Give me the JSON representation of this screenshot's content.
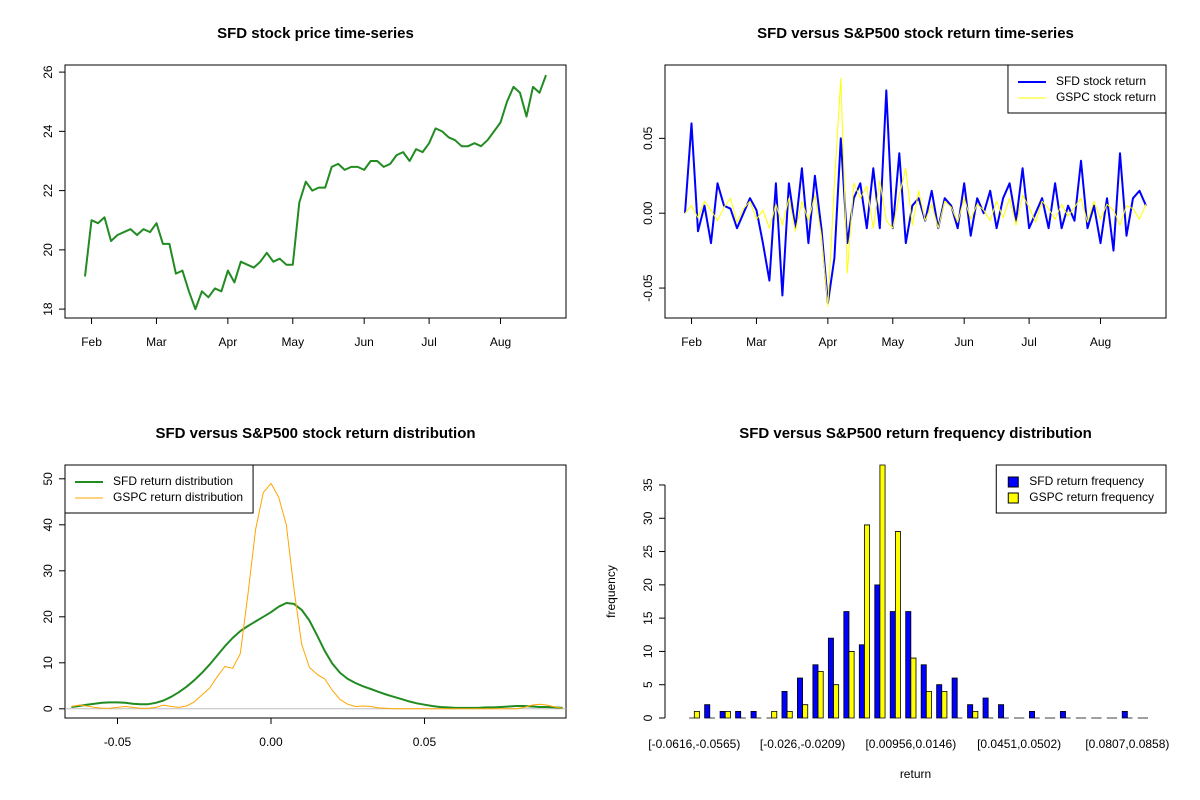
{
  "chart_data": [
    {
      "type": "line",
      "title": "SFD stock price time-series",
      "categories": [
        null,
        "Feb",
        null,
        null,
        null,
        null,
        null,
        null,
        null,
        null,
        null,
        "Mar",
        null,
        null,
        null,
        null,
        null,
        null,
        null,
        null,
        null,
        null,
        "Apr",
        null,
        null,
        null,
        null,
        null,
        null,
        null,
        null,
        null,
        "May",
        null,
        null,
        null,
        null,
        null,
        null,
        null,
        null,
        null,
        null,
        "Jun",
        null,
        null,
        null,
        null,
        null,
        null,
        null,
        null,
        null,
        "Jul",
        null,
        null,
        null,
        null,
        null,
        null,
        null,
        null,
        null,
        null,
        "Aug",
        null,
        null,
        null,
        null,
        null,
        null,
        null
      ],
      "series": [
        {
          "color": "#228b22",
          "values": [
            19.1,
            21.0,
            20.9,
            21.1,
            20.3,
            20.5,
            20.6,
            20.7,
            20.5,
            20.7,
            20.6,
            20.9,
            20.2,
            20.2,
            19.2,
            19.3,
            18.6,
            18.0,
            18.6,
            18.4,
            18.7,
            18.6,
            19.3,
            18.9,
            19.6,
            19.5,
            19.4,
            19.6,
            19.9,
            19.6,
            19.7,
            19.5,
            19.5,
            21.6,
            22.3,
            22.0,
            22.1,
            22.1,
            22.8,
            22.9,
            22.7,
            22.8,
            22.8,
            22.7,
            23.0,
            23.0,
            22.8,
            22.9,
            23.2,
            23.3,
            23.0,
            23.4,
            23.3,
            23.6,
            24.1,
            24.0,
            23.8,
            23.7,
            23.5,
            23.5,
            23.6,
            23.5,
            23.7,
            24.0,
            24.3,
            25.0,
            25.5,
            25.3,
            24.5,
            25.5,
            25.3,
            25.9
          ]
        }
      ],
      "ylim": [
        17.7,
        26.24
      ],
      "yticks": [
        18,
        20,
        22,
        24,
        26
      ]
    },
    {
      "type": "line",
      "title": "SFD versus S&P500 stock return time-series",
      "categories": [
        null,
        "Feb",
        null,
        null,
        null,
        null,
        null,
        null,
        null,
        null,
        null,
        "Mar",
        null,
        null,
        null,
        null,
        null,
        null,
        null,
        null,
        null,
        null,
        "Apr",
        null,
        null,
        null,
        null,
        null,
        null,
        null,
        null,
        null,
        "May",
        null,
        null,
        null,
        null,
        null,
        null,
        null,
        null,
        null,
        null,
        "Jun",
        null,
        null,
        null,
        null,
        null,
        null,
        null,
        null,
        null,
        "Jul",
        null,
        null,
        null,
        null,
        null,
        null,
        null,
        null,
        null,
        null,
        "Aug",
        null,
        null,
        null,
        null,
        null,
        null,
        null
      ],
      "series": [
        {
          "name": "SFD stock return",
          "color": "#0000ff",
          "values": [
            0.0,
            0.06,
            -0.012,
            0.005,
            -0.02,
            0.02,
            0.005,
            0.003,
            -0.01,
            0.0,
            0.01,
            0.002,
            -0.02,
            -0.045,
            0.02,
            -0.055,
            0.02,
            -0.01,
            0.03,
            -0.02,
            0.025,
            -0.01,
            -0.06,
            -0.03,
            0.05,
            -0.02,
            0.01,
            0.02,
            -0.01,
            0.03,
            -0.01,
            0.082,
            -0.01,
            0.04,
            -0.02,
            0.005,
            0.01,
            -0.005,
            0.015,
            -0.01,
            0.01,
            0.005,
            -0.01,
            0.02,
            -0.015,
            0.01,
            0.0,
            0.015,
            -0.01,
            0.01,
            0.02,
            -0.005,
            0.03,
            -0.01,
            0.0,
            0.01,
            -0.01,
            0.02,
            -0.01,
            0.005,
            -0.005,
            0.035,
            -0.01,
            0.005,
            -0.02,
            0.01,
            -0.025,
            0.04,
            -0.015,
            0.01,
            0.015,
            0.005
          ]
        },
        {
          "name": "GSPC stock return",
          "color": "#ffff00",
          "values": [
            0.0,
            0.005,
            -0.003,
            0.008,
            0.002,
            -0.005,
            0.004,
            0.01,
            -0.006,
            0.003,
            0.008,
            -0.004,
            0.002,
            -0.01,
            0.006,
            -0.008,
            0.01,
            -0.012,
            0.008,
            -0.005,
            0.012,
            -0.015,
            -0.062,
            0.02,
            0.09,
            -0.04,
            0.02,
            0.01,
            0.018,
            -0.01,
            0.022,
            -0.005,
            -0.01,
            0.012,
            0.03,
            -0.008,
            0.015,
            -0.005,
            0.006,
            -0.01,
            0.008,
            0.004,
            -0.006,
            0.01,
            -0.004,
            0.006,
            0.002,
            -0.005,
            0.008,
            -0.003,
            0.01,
            -0.008,
            0.012,
            0.004,
            -0.006,
            0.008,
            0.003,
            -0.004,
            0.006,
            -0.002,
            0.004,
            0.01,
            -0.006,
            0.008,
            -0.004,
            0.006,
            0.002,
            -0.008,
            0.005,
            0.003,
            -0.004,
            0.006
          ]
        }
      ],
      "ylim": [
        -0.07,
        0.099
      ],
      "yticks": [
        -0.05,
        {
          "value": 0,
          "label": "0.00"
        },
        0.05
      ],
      "legend": "topright"
    },
    {
      "type": "density",
      "title": "SFD versus S&P500 stock return distribution",
      "x": [
        -0.065,
        -0.0625,
        -0.06,
        -0.0575,
        -0.055,
        -0.0525,
        -0.05,
        -0.0475,
        -0.045,
        -0.0425,
        -0.04,
        -0.0375,
        -0.035,
        -0.0325,
        -0.03,
        -0.0275,
        -0.025,
        -0.0225,
        -0.02,
        -0.0175,
        -0.015,
        -0.0125,
        -0.01,
        -0.0075,
        -0.005,
        -0.0025,
        0,
        0.0025,
        0.005,
        0.0075,
        0.01,
        0.0125,
        0.015,
        0.0175,
        0.02,
        0.0225,
        0.025,
        0.0275,
        0.03,
        0.0325,
        0.035,
        0.0375,
        0.04,
        0.0425,
        0.045,
        0.0475,
        0.05,
        0.0525,
        0.055,
        0.0575,
        0.06,
        0.0625,
        0.065,
        0.0675,
        0.07,
        0.0725,
        0.075,
        0.0775,
        0.08,
        0.0825,
        0.085,
        0.0875,
        0.09,
        0.0925,
        0.095
      ],
      "series": [
        {
          "name": "SFD return distribution",
          "color": "#228b22",
          "values": [
            0.4,
            0.6,
            0.9,
            1.1,
            1.3,
            1.4,
            1.4,
            1.3,
            1.1,
            1.0,
            1.0,
            1.3,
            1.8,
            2.6,
            3.6,
            4.8,
            6.2,
            7.8,
            9.6,
            11.6,
            13.6,
            15.4,
            16.9,
            18.0,
            19.0,
            20.0,
            21.0,
            22.2,
            23.0,
            22.8,
            21.5,
            19.2,
            16.0,
            12.6,
            9.8,
            7.8,
            6.5,
            5.6,
            4.9,
            4.3,
            3.7,
            3.1,
            2.6,
            2.1,
            1.6,
            1.2,
            0.9,
            0.6,
            0.4,
            0.3,
            0.2,
            0.2,
            0.2,
            0.2,
            0.3,
            0.3,
            0.4,
            0.5,
            0.6,
            0.6,
            0.5,
            0.4,
            0.4,
            0.3,
            0.2
          ]
        },
        {
          "name": "GSPC return distribution",
          "color": "#ffa500",
          "values": [
            0.5,
            0.8,
            0.6,
            0.3,
            0.1,
            0.1,
            0.3,
            0.5,
            0.3,
            0.1,
            0.1,
            0.3,
            0.8,
            0.5,
            0.3,
            0.6,
            1.5,
            3.0,
            4.5,
            7.0,
            9.2,
            8.8,
            12.0,
            25.0,
            39.0,
            47.0,
            49.0,
            46.0,
            40.0,
            26.0,
            14.0,
            9.0,
            7.5,
            6.5,
            4.0,
            2.0,
            1.0,
            0.5,
            0.6,
            0.5,
            0.2,
            0.1,
            0,
            0,
            0,
            0,
            0,
            0,
            0,
            0,
            0,
            0,
            0,
            0,
            0,
            0,
            0,
            0,
            0,
            0.3,
            0.8,
            1.0,
            0.8,
            0.4,
            0.1
          ]
        }
      ],
      "xlim": [
        -0.0671,
        0.0961
      ],
      "xticks": [
        -0.05,
        {
          "value": 0,
          "label": "0.00"
        },
        0.05
      ],
      "ylim": [
        -2,
        53
      ],
      "yticks": [
        0,
        10,
        20,
        30,
        40,
        50
      ],
      "legend": "topleft"
    },
    {
      "type": "bar",
      "title": "SFD versus S&P500 return frequency distribution",
      "xlabel": "return",
      "ylabel": "frequency",
      "categories": [
        "[-0.0616,-0.0565)",
        null,
        null,
        null,
        null,
        null,
        null,
        "[-0.026,-0.0209)",
        null,
        null,
        null,
        null,
        null,
        null,
        "[0.00956,0.0146)",
        null,
        null,
        null,
        null,
        null,
        null,
        "[0.0451,0.0502)",
        null,
        null,
        null,
        null,
        null,
        null,
        "[0.0807,0.0858)",
        null
      ],
      "series": [
        {
          "name": "SFD return frequency",
          "color": "#0000ff",
          "values": [
            0,
            2,
            1,
            1,
            1,
            0,
            4,
            6,
            8,
            12,
            16,
            11,
            20,
            16,
            16,
            8,
            5,
            6,
            2,
            3,
            2,
            0,
            1,
            0,
            1,
            0,
            0,
            0,
            1,
            0
          ]
        },
        {
          "name": "GSPC return frequency",
          "color": "#ffff00",
          "values": [
            1,
            0,
            1,
            0,
            0,
            1,
            1,
            2,
            7,
            5,
            10,
            29,
            38,
            28,
            9,
            4,
            4,
            0,
            1,
            0,
            0,
            0,
            0,
            0,
            0,
            0,
            0,
            0,
            0,
            0
          ]
        }
      ],
      "ylim": [
        0,
        38
      ],
      "yticks": [
        0,
        5,
        10,
        15,
        20,
        25,
        30,
        35
      ],
      "legend": "topright"
    }
  ]
}
